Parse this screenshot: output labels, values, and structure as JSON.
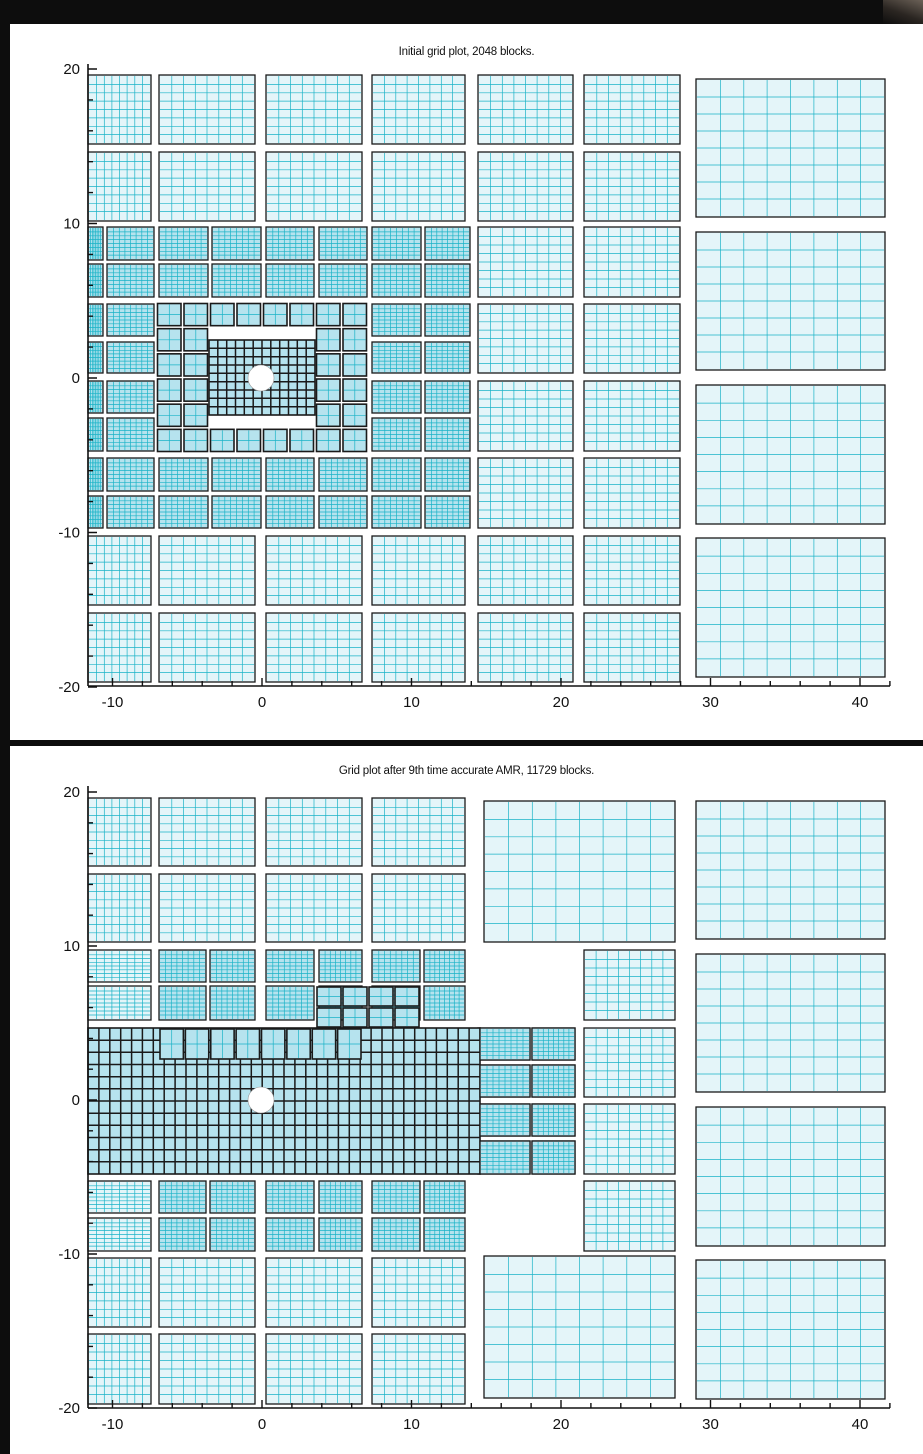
{
  "colors": {
    "block_fill": "#e4f5f9",
    "refined_fill": "#b6e3ee",
    "grid_line": "#1ab3c7",
    "block_border": "#1a1a1a",
    "hole": "#ffffff"
  },
  "plots": [
    {
      "title": "Initial grid plot, 2048 blocks.",
      "x_ticks": [
        "-10",
        "0",
        "10",
        "20",
        "30",
        "40"
      ],
      "y_ticks": [
        "20",
        "10",
        "0",
        "-10",
        "-20"
      ],
      "xlim": [
        -12,
        42
      ],
      "ylim": [
        -20,
        20
      ]
    },
    {
      "title": "Grid plot after 9th time accurate AMR, 11729 blocks.",
      "x_ticks": [
        "-10",
        "0",
        "10",
        "20",
        "30",
        "40"
      ],
      "y_ticks": [
        "20",
        "10",
        "0",
        "-10",
        "-20"
      ],
      "xlim": [
        -12,
        42
      ],
      "ylim": [
        -20,
        20
      ]
    }
  ]
}
